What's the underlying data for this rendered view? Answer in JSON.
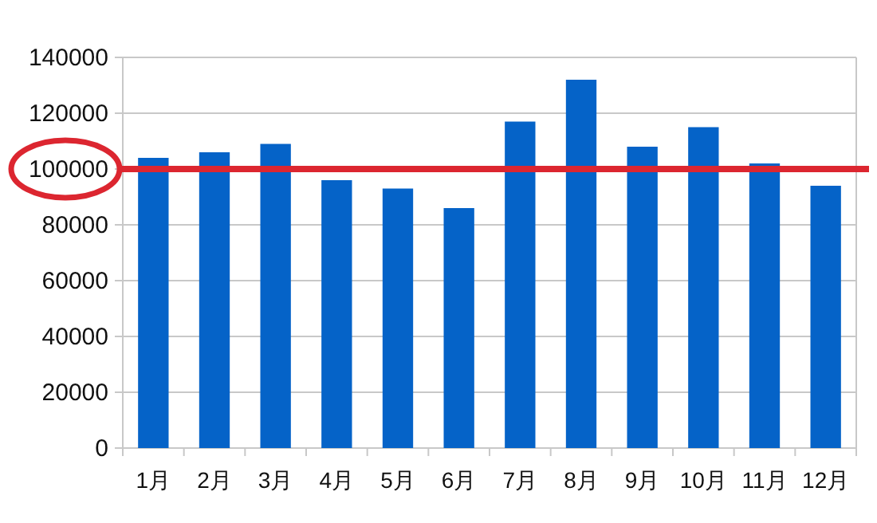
{
  "chart_data": {
    "type": "bar",
    "categories": [
      "1月",
      "2月",
      "3月",
      "4月",
      "5月",
      "6月",
      "7月",
      "8月",
      "9月",
      "10月",
      "11月",
      "12月"
    ],
    "values": [
      104000,
      106000,
      109000,
      96000,
      93000,
      86000,
      117000,
      132000,
      108000,
      115000,
      102000,
      94000
    ],
    "color": "#0563c8",
    "ylim": [
      0,
      140000
    ],
    "yticks": [
      0,
      20000,
      40000,
      60000,
      80000,
      100000,
      120000,
      140000
    ],
    "grid": "y",
    "ref_lines": [
      {
        "axis": "y",
        "value": 100000,
        "color": "#dc2630"
      }
    ]
  }
}
